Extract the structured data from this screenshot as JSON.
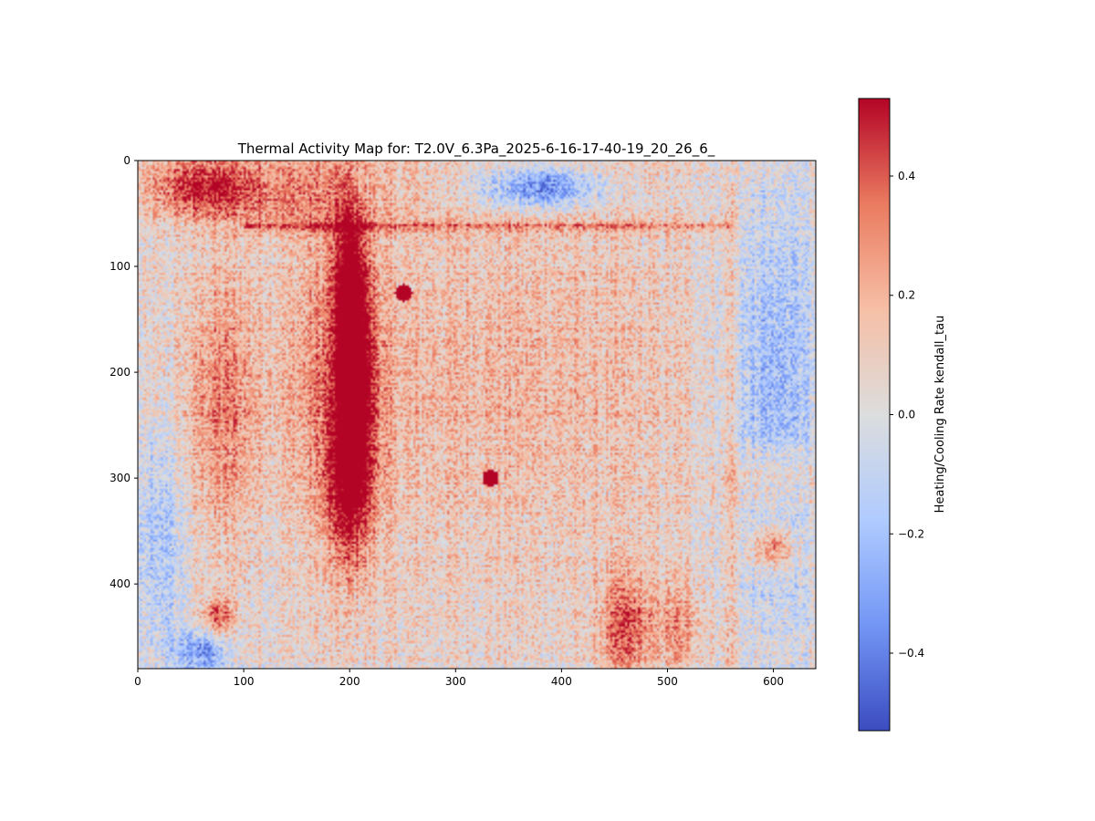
{
  "chart_data": {
    "type": "heatmap",
    "title": "Thermal Activity Map for: T2.0V_6.3Pa_2025-6-16-17-40-19_20_26_6_",
    "xlabel": "",
    "ylabel": "",
    "xlim": [
      0,
      640
    ],
    "ylim": [
      480,
      0
    ],
    "x_ticks": [
      0,
      100,
      200,
      300,
      400,
      500,
      600
    ],
    "y_ticks": [
      0,
      100,
      200,
      300,
      400
    ],
    "colorbar": {
      "label": "Heating/Cooling Rate kendall_tau",
      "range": [
        -0.53,
        0.53
      ],
      "ticks": [
        -0.4,
        -0.2,
        0.0,
        0.2,
        0.4
      ],
      "tick_labels": [
        "−0.4",
        "−0.2",
        "0.0",
        "0.2",
        "0.4"
      ],
      "colormap": "coolwarm",
      "colors": [
        "#3b4cc0",
        "#7396f5",
        "#b0cbff",
        "#dcdddd",
        "#f6bfa6",
        "#ea7b60",
        "#b40426"
      ]
    },
    "grid": false,
    "features": [
      {
        "kind": "blob",
        "x": 200,
        "y": 110,
        "sx": 10,
        "sy": 45,
        "value": 0.45
      },
      {
        "kind": "blob",
        "x": 205,
        "y": 200,
        "sx": 14,
        "sy": 75,
        "value": 0.5
      },
      {
        "kind": "blob",
        "x": 200,
        "y": 310,
        "sx": 16,
        "sy": 55,
        "value": 0.4
      },
      {
        "kind": "blob",
        "x": 180,
        "y": 200,
        "sx": 30,
        "sy": 110,
        "value": 0.18
      },
      {
        "kind": "blob",
        "x": 60,
        "y": 25,
        "sx": 35,
        "sy": 18,
        "value": 0.4
      },
      {
        "kind": "blob",
        "x": 140,
        "y": 30,
        "sx": 60,
        "sy": 25,
        "value": 0.22
      },
      {
        "kind": "blob",
        "x": 380,
        "y": 25,
        "sx": 40,
        "sy": 14,
        "value": -0.45
      },
      {
        "kind": "blob",
        "x": 600,
        "y": 230,
        "sx": 30,
        "sy": 140,
        "value": -0.3
      },
      {
        "kind": "blob",
        "x": 20,
        "y": 360,
        "sx": 18,
        "sy": 80,
        "value": -0.22
      },
      {
        "kind": "blob",
        "x": 60,
        "y": 465,
        "sx": 18,
        "sy": 14,
        "value": -0.4
      },
      {
        "kind": "blob",
        "x": 460,
        "y": 440,
        "sx": 16,
        "sy": 35,
        "value": 0.35
      },
      {
        "kind": "blob",
        "x": 510,
        "y": 440,
        "sx": 18,
        "sy": 30,
        "value": 0.22
      },
      {
        "kind": "blob",
        "x": 600,
        "y": 365,
        "sx": 16,
        "sy": 14,
        "value": 0.4
      },
      {
        "kind": "blob",
        "x": 600,
        "y": 300,
        "sx": 30,
        "sy": 25,
        "value": 0.22
      },
      {
        "kind": "blob",
        "x": 80,
        "y": 230,
        "sx": 25,
        "sy": 90,
        "value": 0.25
      },
      {
        "kind": "blob",
        "x": 330,
        "y": 200,
        "sx": 150,
        "sy": 150,
        "value": 0.15
      },
      {
        "kind": "blob",
        "x": 75,
        "y": 430,
        "sx": 10,
        "sy": 12,
        "value": 0.35
      },
      {
        "kind": "spot",
        "x": 251,
        "y": 125,
        "r": 8,
        "value": 0.53
      },
      {
        "kind": "spot",
        "x": 333,
        "y": 300,
        "r": 8,
        "value": 0.53
      },
      {
        "kind": "hline",
        "y": 62,
        "x0": 100,
        "x1": 560,
        "value": 0.25
      },
      {
        "kind": "vline",
        "x": 560,
        "y0": 20,
        "y1": 480,
        "value": 0.15
      }
    ]
  }
}
